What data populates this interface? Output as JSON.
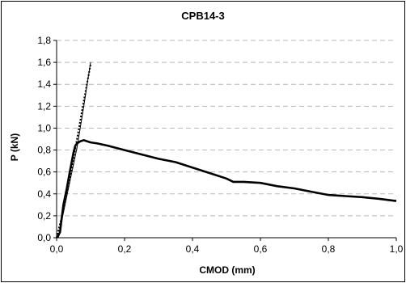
{
  "chart_data": {
    "type": "line",
    "title": "CPB14-3",
    "xlabel": "CMOD (mm)",
    "ylabel": "P (kN)",
    "xlim": [
      0,
      1.0
    ],
    "ylim": [
      0,
      1.8
    ],
    "x_ticks": [
      "0,0",
      "0,2",
      "0,4",
      "0,6",
      "0,8",
      "1,0"
    ],
    "y_ticks": [
      "0,0",
      "0,2",
      "0,4",
      "0,6",
      "0,8",
      "1,0",
      "1,2",
      "1,4",
      "1,6",
      "1,8"
    ],
    "grid": "horizontal dashed",
    "series": [
      {
        "style": "thick",
        "color": "#000000",
        "x": [
          0.0,
          0.005,
          0.01,
          0.015,
          0.02,
          0.03,
          0.04,
          0.05,
          0.055,
          0.06,
          0.07,
          0.08,
          0.09,
          0.1,
          0.12,
          0.15,
          0.2,
          0.25,
          0.3,
          0.35,
          0.4,
          0.45,
          0.5,
          0.52,
          0.55,
          0.6,
          0.65,
          0.7,
          0.75,
          0.8,
          0.85,
          0.9,
          0.95,
          1.0
        ],
        "y": [
          0.0,
          0.02,
          0.05,
          0.18,
          0.3,
          0.45,
          0.62,
          0.78,
          0.84,
          0.86,
          0.88,
          0.89,
          0.88,
          0.87,
          0.86,
          0.84,
          0.8,
          0.76,
          0.72,
          0.69,
          0.64,
          0.59,
          0.54,
          0.51,
          0.51,
          0.5,
          0.47,
          0.45,
          0.42,
          0.39,
          0.38,
          0.37,
          0.355,
          0.335
        ]
      },
      {
        "style": "thin",
        "color": "#000000",
        "x": [
          0.005,
          0.03,
          0.06,
          0.08,
          0.1
        ],
        "y": [
          0.0,
          0.38,
          0.82,
          1.2,
          1.6
        ]
      },
      {
        "style": "dotted",
        "color": "#000000",
        "x": [
          0.0,
          0.02,
          0.04,
          0.06,
          0.08,
          0.1
        ],
        "y": [
          0.0,
          0.25,
          0.55,
          0.9,
          1.25,
          1.58
        ]
      }
    ]
  }
}
